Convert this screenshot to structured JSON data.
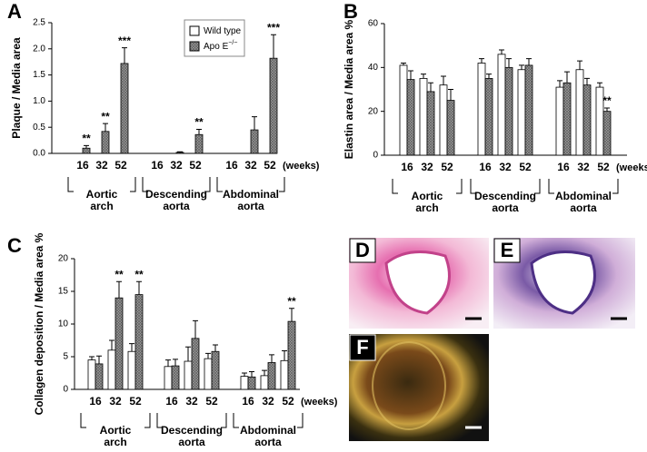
{
  "chart_data": [
    {
      "type": "bar",
      "panel": "A",
      "y_label": "Plaque  / Media area",
      "categories": [
        "16",
        "32",
        "52",
        "16",
        "32",
        "52",
        "16",
        "32",
        "52"
      ],
      "groups": [
        [
          "Aortic",
          "arch"
        ],
        [
          "Descending",
          "aorta"
        ],
        [
          "Abdominal",
          "aorta"
        ]
      ],
      "x_unit": "(weeks)",
      "ylim": [
        0,
        2.5
      ],
      "yticks": [
        {
          "value": 0,
          "label": "0.0"
        },
        0.5,
        {
          "value": 1,
          "label": "1.0"
        },
        1.5,
        {
          "value": 2,
          "label": "2.0"
        },
        2.5
      ],
      "legend": true,
      "series": [
        {
          "name": "Wild type",
          "color": "#ffffff",
          "values": [
            0,
            0,
            0,
            0,
            0,
            0,
            0,
            0,
            0
          ],
          "errors": [
            0,
            0,
            0,
            0,
            0,
            0,
            0,
            0,
            0
          ],
          "significance": [
            null,
            null,
            null,
            null,
            null,
            null,
            null,
            null,
            null
          ]
        },
        {
          "name": "Apo E",
          "name_sup": "−/−",
          "color": "#8c8c8c",
          "values": [
            0.1,
            0.42,
            1.72,
            0,
            0.02,
            0.36,
            0,
            0.45,
            1.82
          ],
          "errors": [
            0.05,
            0.15,
            0.3,
            0,
            0.01,
            0.1,
            0,
            0.25,
            0.45
          ],
          "significance": [
            "**",
            "**",
            "***",
            null,
            null,
            "**",
            null,
            null,
            "***"
          ]
        }
      ]
    },
    {
      "type": "bar",
      "panel": "B",
      "y_label": "Elastin area / Media area %",
      "categories": [
        "16",
        "32",
        "52",
        "16",
        "32",
        "52",
        "16",
        "32",
        "52"
      ],
      "groups": [
        [
          "Aortic",
          "arch"
        ],
        [
          "Descending",
          "aorta"
        ],
        [
          "Abdominal",
          "aorta"
        ]
      ],
      "x_unit": "(weeks)",
      "ylim": [
        0,
        60
      ],
      "yticks": [
        0,
        20,
        40,
        60
      ],
      "series": [
        {
          "color": "#ffffff",
          "values": [
            41,
            35,
            32,
            42,
            46,
            39,
            31,
            39,
            31
          ],
          "errors": [
            1,
            2,
            4,
            2,
            2,
            2,
            3,
            4,
            2
          ],
          "significance": [
            null,
            null,
            null,
            null,
            null,
            null,
            null,
            null,
            null
          ]
        },
        {
          "color": "#8c8c8c",
          "values": [
            34.5,
            29,
            25,
            35,
            40,
            41,
            33,
            32,
            20
          ],
          "errors": [
            4,
            4,
            5,
            2,
            4,
            3,
            5,
            3,
            1.5
          ],
          "significance": [
            null,
            null,
            null,
            null,
            null,
            null,
            null,
            null,
            "**"
          ]
        }
      ]
    },
    {
      "type": "bar",
      "panel": "C",
      "y_label": "Collagen deposition / Media area %",
      "categories": [
        "16",
        "32",
        "52",
        "16",
        "32",
        "52",
        "16",
        "32",
        "52"
      ],
      "groups": [
        [
          "Aortic",
          "arch"
        ],
        [
          "Descending",
          "aorta"
        ],
        [
          "Abdominal",
          "aorta"
        ]
      ],
      "x_unit": "(weeks)",
      "ylim": [
        0,
        20
      ],
      "yticks": [
        0,
        5,
        10,
        15,
        20
      ],
      "series": [
        {
          "color": "#ffffff",
          "values": [
            4.5,
            6,
            5.8,
            3.5,
            4.3,
            4.7,
            2,
            2.1,
            4.4
          ],
          "errors": [
            0.5,
            1.5,
            1.2,
            1,
            2.2,
            0.8,
            0.5,
            0.8,
            1.5
          ],
          "significance": [
            null,
            null,
            null,
            null,
            null,
            null,
            null,
            null,
            null
          ]
        },
        {
          "color": "#8c8c8c",
          "values": [
            3.9,
            14,
            14.5,
            3.6,
            7.8,
            5.8,
            1.9,
            4.1,
            10.4
          ],
          "errors": [
            1.2,
            2.5,
            2,
            1,
            2.7,
            1,
            0.8,
            1.2,
            2
          ],
          "significance": [
            null,
            "**",
            "**",
            null,
            null,
            null,
            null,
            null,
            "**"
          ]
        }
      ]
    }
  ],
  "images": [
    {
      "panel": "D"
    },
    {
      "panel": "E"
    },
    {
      "panel": "F"
    }
  ]
}
